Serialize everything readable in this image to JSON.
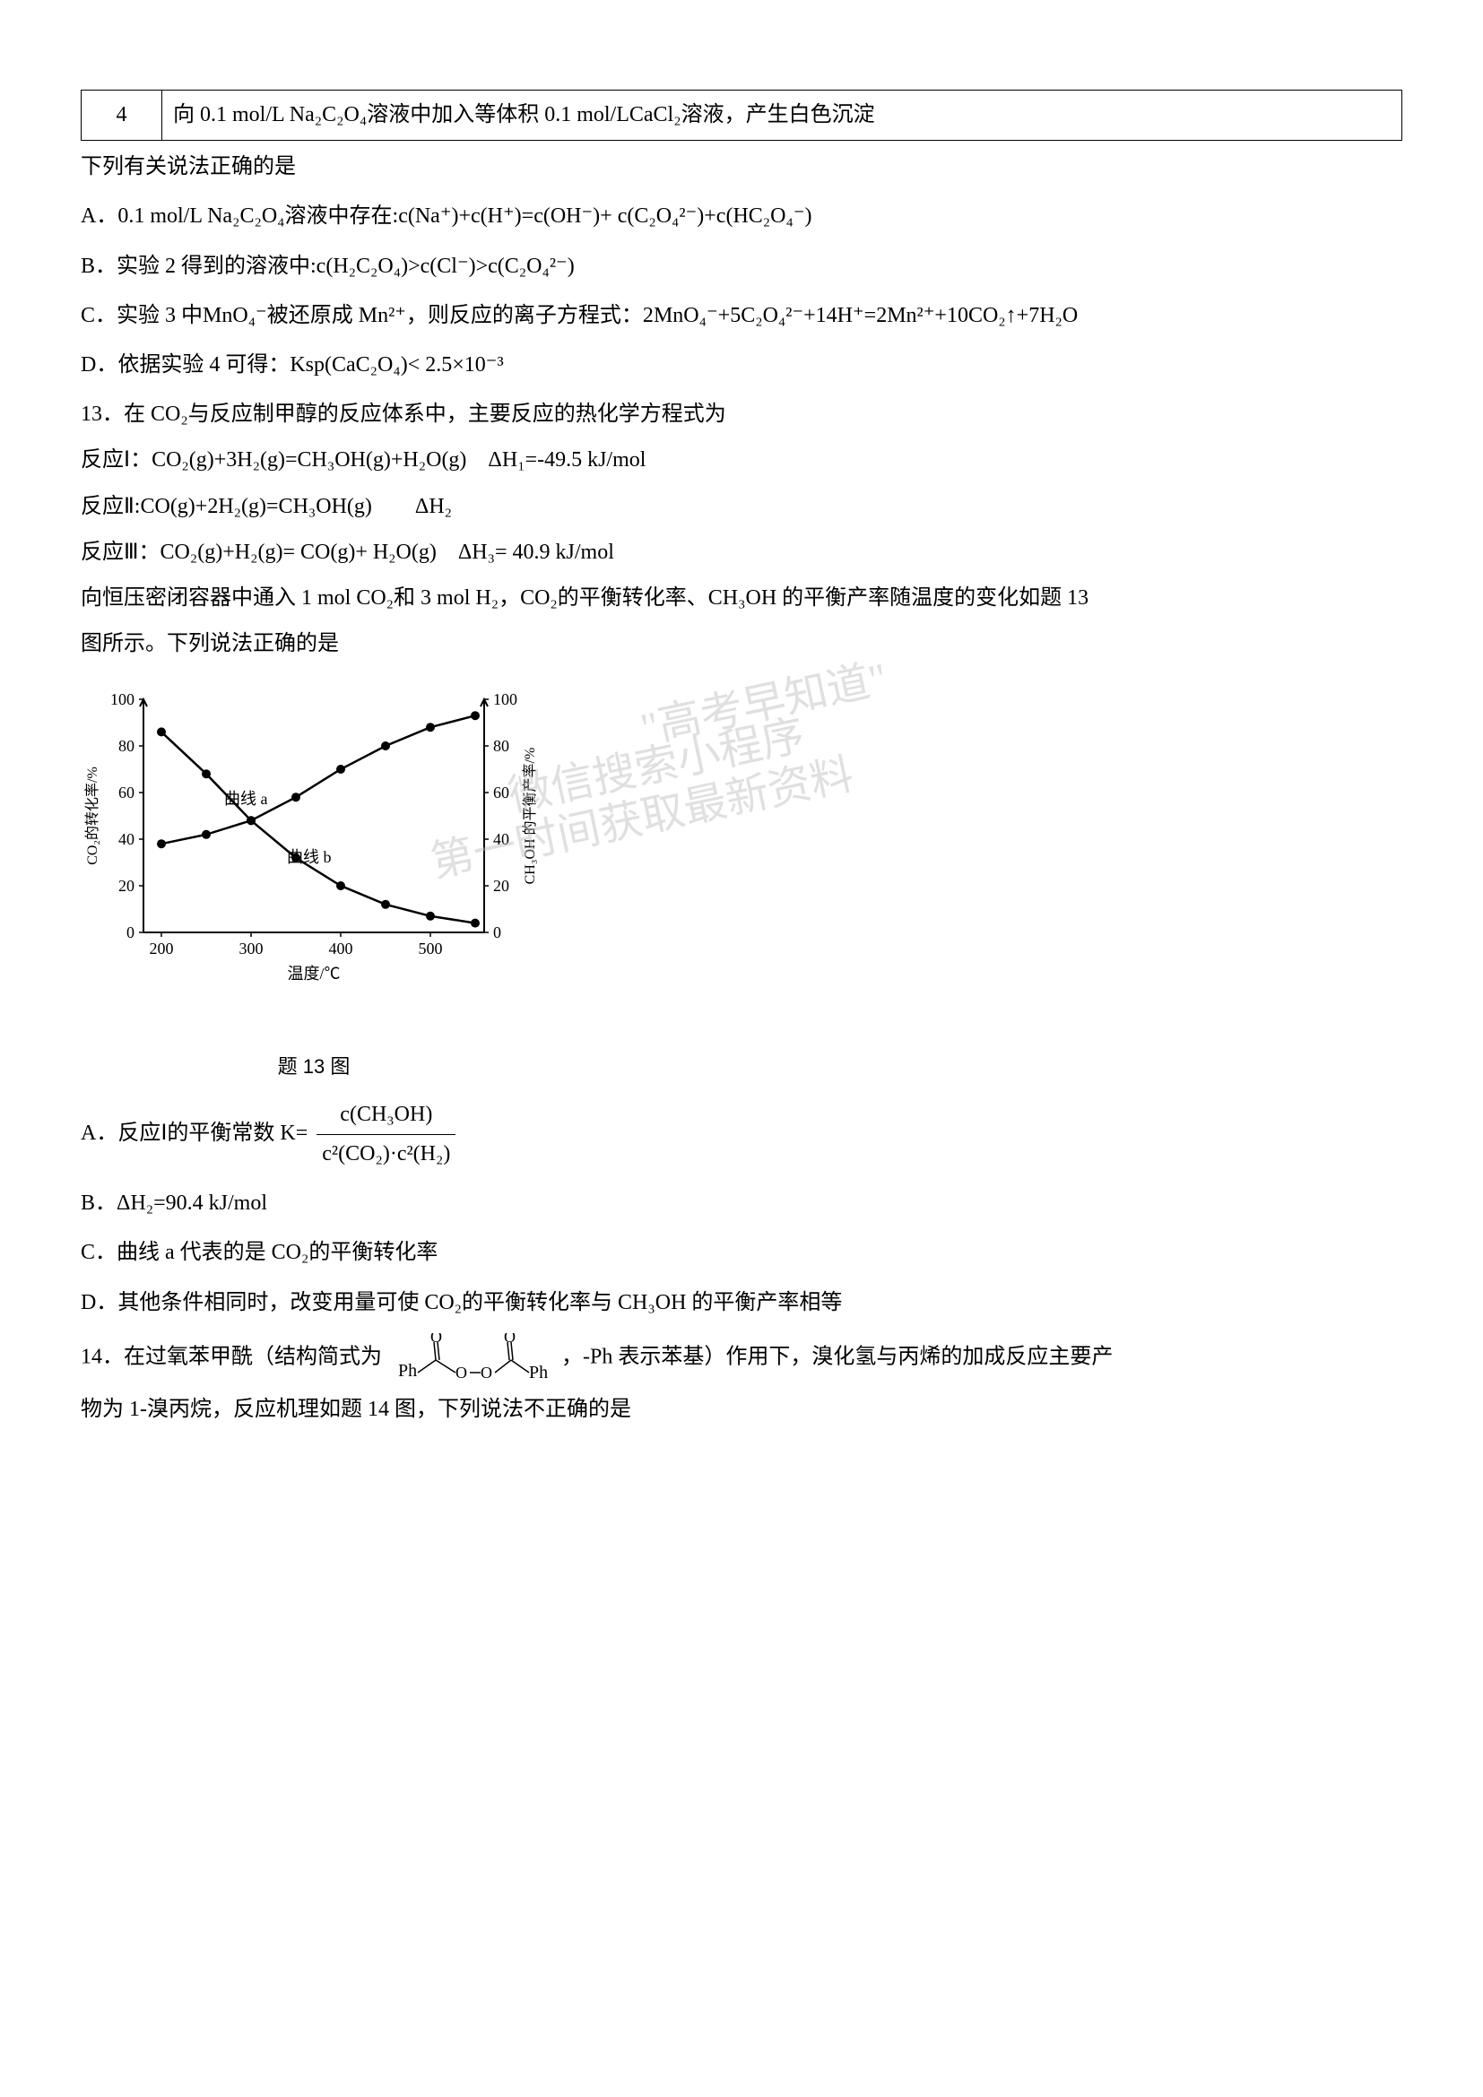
{
  "table": {
    "row_num": "4",
    "row_text": "向 0.1 mol/L Na₂C₂O₄溶液中加入等体积 0.1 mol/LCaCl₂溶液，产生白色沉淀"
  },
  "q12": {
    "prompt": "下列有关说法正确的是",
    "optA_prefix": "A．0.1 mol/L Na₂C₂O₄溶液中存在:c(Na⁺)+c(H⁺)=c(OH⁻)+ c(",
    "optA_c2o4": "C₂O₄²⁻",
    "optA_mid": ")+c(",
    "optA_hc2o4": "HC₂O₄⁻",
    "optA_end": ")",
    "optB_prefix": "B．实验 2 得到的溶液中:c(H₂C₂O₄)>c(Cl⁻)>c(",
    "optB_c2o4": "C₂O₄²⁻",
    "optB_end": ")",
    "optC_prefix": "C．实验 3 中",
    "optC_mno4": "MnO₄⁻",
    "optC_mid1": "被还原成 Mn²⁺，则反应的离子方程式：2",
    "optC_mno4_2": "MnO₄⁻",
    "optC_plus5": "+5",
    "optC_c2o4": "C₂O₄²⁻",
    "optC_end": "+14H⁺=2Mn²⁺+10CO₂↑+7H₂O",
    "optD": "D．依据实验 4 可得：Ksp(CaC₂O₄)< 2.5×10⁻³"
  },
  "q13": {
    "line1": "13．在 CO₂与反应制甲醇的反应体系中，主要反应的热化学方程式为",
    "line2": "反应Ⅰ：CO₂(g)+3H₂(g)=CH₃OH(g)+H₂O(g)　ΔH₁=-49.5 kJ/mol",
    "line3": "反应Ⅱ:CO(g)+2H₂(g)=CH₃OH(g)　　ΔH₂",
    "line4": "反应Ⅲ：CO₂(g)+H₂(g)= CO(g)+ H₂O(g)　ΔH₃= 40.9 kJ/mol",
    "line5": "向恒压密闭容器中通入 1 mol CO₂和 3 mol H₂，CO₂的平衡转化率、CH₃OH 的平衡产率随温度的变化如题 13",
    "line6": "图所示。下列说法正确的是",
    "optA_prefix": "A．反应Ⅰ的平衡常数 K=",
    "optA_num": "c(CH₃OH)",
    "optA_den": "c²(CO₂)·c²(H₂)",
    "optB": "B．ΔH₂=90.4 kJ/mol",
    "optC": "C．曲线 a 代表的是 CO₂的平衡转化率",
    "optD": "D．其他条件相同时，改变用量可使 CO₂的平衡转化率与 CH₃OH 的平衡产率相等"
  },
  "q14": {
    "line1_pre": "14．在过氧苯甲酰（结构简式为",
    "line1_post": "，-Ph 表示苯基）作用下，溴化氢与丙烯的加成反应主要产",
    "line2": "物为 1-溴丙烷，反应机理如题 14 图，下列说法不正确的是"
  },
  "chart": {
    "type": "line",
    "xlabel": "温度/℃",
    "ylabel_left": "CO₂的转化率/%",
    "ylabel_right": "CH₃OH 的平衡产率/%",
    "caption": "题 13 图",
    "curve_a_label": "曲线 a",
    "curve_b_label": "曲线 b",
    "x_ticks": [
      "200",
      "300",
      "400",
      "500"
    ],
    "y_left_ticks": [
      "0",
      "20",
      "40",
      "60",
      "80",
      "100"
    ],
    "y_right_ticks": [
      "0",
      "20",
      "40",
      "60",
      "80",
      "100"
    ],
    "curve_a": [
      {
        "x": 200,
        "y": 38
      },
      {
        "x": 250,
        "y": 42
      },
      {
        "x": 300,
        "y": 48
      },
      {
        "x": 350,
        "y": 58
      },
      {
        "x": 400,
        "y": 70
      },
      {
        "x": 450,
        "y": 80
      },
      {
        "x": 500,
        "y": 88
      },
      {
        "x": 550,
        "y": 93
      }
    ],
    "curve_b": [
      {
        "x": 200,
        "y": 86
      },
      {
        "x": 250,
        "y": 68
      },
      {
        "x": 300,
        "y": 48
      },
      {
        "x": 350,
        "y": 32
      },
      {
        "x": 400,
        "y": 20
      },
      {
        "x": 450,
        "y": 12
      },
      {
        "x": 500,
        "y": 7
      },
      {
        "x": 550,
        "y": 4
      }
    ],
    "axis_color": "#000000",
    "line_color": "#000000",
    "marker_color": "#000000",
    "background": "#ffffff",
    "xlim": [
      180,
      560
    ],
    "ylim": [
      0,
      100
    ],
    "font_size": 18
  },
  "watermark": {
    "line1": "\"高考早知道\"",
    "line2": "微信搜索小程序",
    "line3": "第一时间获取最新资料"
  },
  "structure": {
    "ph_left": "Ph",
    "ph_right": "Ph",
    "o_label": "O",
    "peroxide": "O—O"
  }
}
